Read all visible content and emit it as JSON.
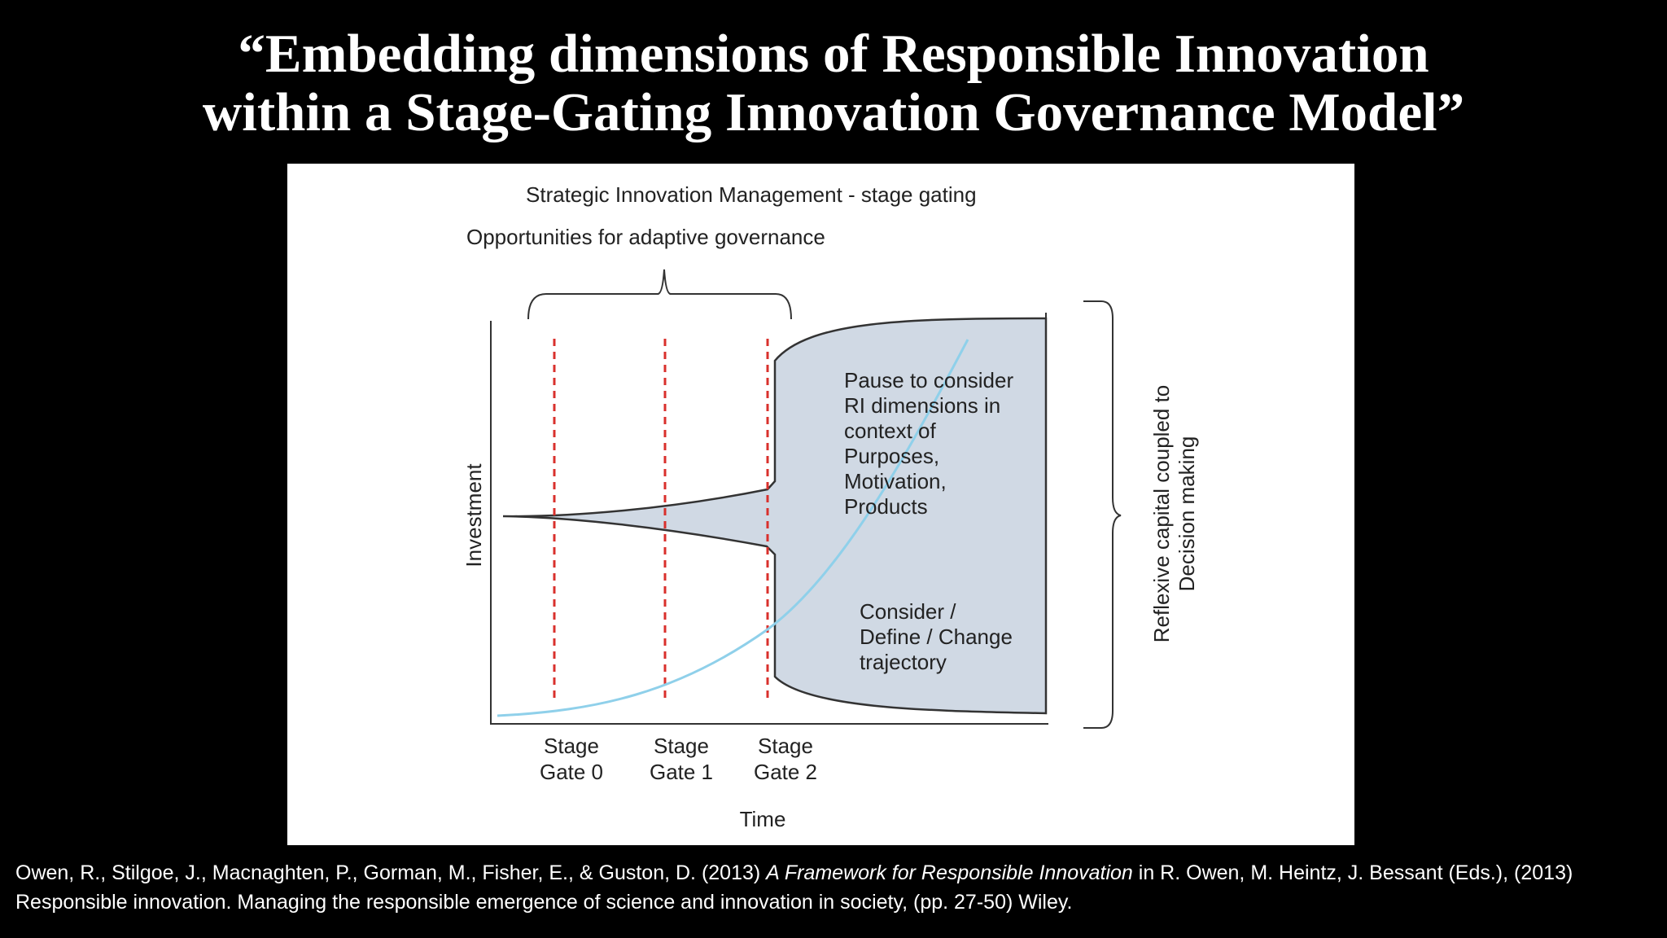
{
  "slide": {
    "title_line1": "“Embedding dimensions of Responsible Innovation",
    "title_line2": "within a Stage-Gating Innovation Governance Model”"
  },
  "diagram": {
    "top_label": "Strategic Innovation Management - stage gating",
    "bracket_label": "Opportunities for adaptive governance",
    "y_axis_label": "Investment",
    "x_axis_label": "Time",
    "gates": [
      {
        "line1": "Stage",
        "line2": "Gate 0"
      },
      {
        "line1": "Stage",
        "line2": "Gate 1"
      },
      {
        "line1": "Stage",
        "line2": "Gate 2"
      }
    ],
    "pause_text": [
      "Pause to consider",
      "RI dimensions in",
      "context of",
      "Purposes,",
      "Motivation,",
      "Products"
    ],
    "consider_text": [
      "Consider /",
      "Define / Change",
      "trajectory"
    ],
    "side_label_line1": "Reflexive capital coupled to",
    "side_label_line2": "Decision making",
    "colors": {
      "gate_line": "#d9302c",
      "investment_curve": "#8fd0ea",
      "funnel_fill": "#d0d9e4",
      "stroke": "#333333"
    }
  },
  "citation": {
    "authors": "Owen, R., Stilgoe, J., Macnaghten, P., Gorman, M., Fisher, E., & Guston, D. (2013) ",
    "work_title": "A Framework for Responsible Innovation",
    "rest_line1": " in R. Owen, M. Heintz, J. Bessant (Eds.), (2013)",
    "rest_line2": "Responsible innovation. Managing the responsible emergence of science and innovation in society, (pp. 27-50) Wiley."
  }
}
